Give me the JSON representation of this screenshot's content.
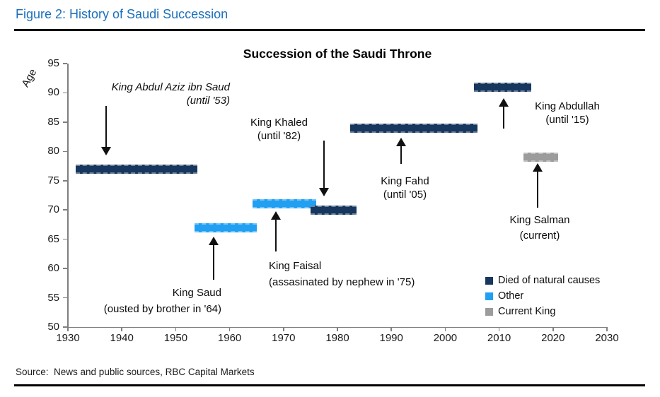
{
  "header": {
    "title": "Figure 2: History of Saudi Succession"
  },
  "footer": {
    "source": "Source:  News and public sources, RBC Capital Markets"
  },
  "chart_data": {
    "type": "bar",
    "variant": "floating horizontal timeline bars (age vs. reign period)",
    "title": "Succession of the Saudi Throne",
    "xlabel": "",
    "ylabel": "Age",
    "xlim": [
      1930,
      2030
    ],
    "ylim": [
      50,
      95
    ],
    "x_ticks": [
      1930,
      1940,
      1950,
      1960,
      1970,
      1980,
      1990,
      2000,
      2010,
      2020,
      2030
    ],
    "y_ticks": [
      50,
      55,
      60,
      65,
      70,
      75,
      80,
      85,
      90,
      95
    ],
    "grid": false,
    "legend_position": "inside lower right",
    "colors": {
      "natural": "#17375E",
      "other": "#21A0F3",
      "current": "#9C9C9C"
    },
    "bars": [
      {
        "king": "King Abdul Aziz ibn Saud",
        "start": 1931.5,
        "end": 1954,
        "age": 77,
        "category": "natural"
      },
      {
        "king": "King Saud",
        "start": 1953.5,
        "end": 1965,
        "age": 67,
        "category": "other"
      },
      {
        "king": "King Faisal",
        "start": 1964.3,
        "end": 1976,
        "age": 71,
        "category": "other"
      },
      {
        "king": "King Khaled",
        "start": 1975,
        "end": 1983.5,
        "age": 70,
        "category": "natural"
      },
      {
        "king": "King Fahd",
        "start": 1982.3,
        "end": 2006,
        "age": 84,
        "category": "natural"
      },
      {
        "king": "King Abdullah",
        "start": 2005.3,
        "end": 2016,
        "age": 91,
        "category": "natural"
      },
      {
        "king": "King Salman",
        "start": 2014.5,
        "end": 2021,
        "age": 79,
        "category": "current"
      }
    ],
    "legend": [
      {
        "label": "Died of natural causes",
        "color": "#17375E"
      },
      {
        "label": "Other",
        "color": "#21A0F3"
      },
      {
        "label": "Current King",
        "color": "#9C9C9C"
      }
    ],
    "annotations": [
      {
        "line1": "King Abdul Aziz ibn Saud",
        "line2": "(until '53)",
        "arrow": "down"
      },
      {
        "line1": "King Khaled",
        "line2": "(until '82)",
        "arrow": "down"
      },
      {
        "line1": "King Saud",
        "line2": "(ousted by brother in '64)",
        "arrow": "up"
      },
      {
        "line1": "King Faisal",
        "line2": "(assasinated by nephew in '75)",
        "arrow": "up"
      },
      {
        "line1": "King Fahd",
        "line2": "(until '05)",
        "arrow": "up"
      },
      {
        "line1": "King Abdullah",
        "line2": "(until '15)",
        "arrow": "up"
      },
      {
        "line1": "King Salman",
        "line2": "(current)",
        "arrow": "up"
      }
    ]
  }
}
